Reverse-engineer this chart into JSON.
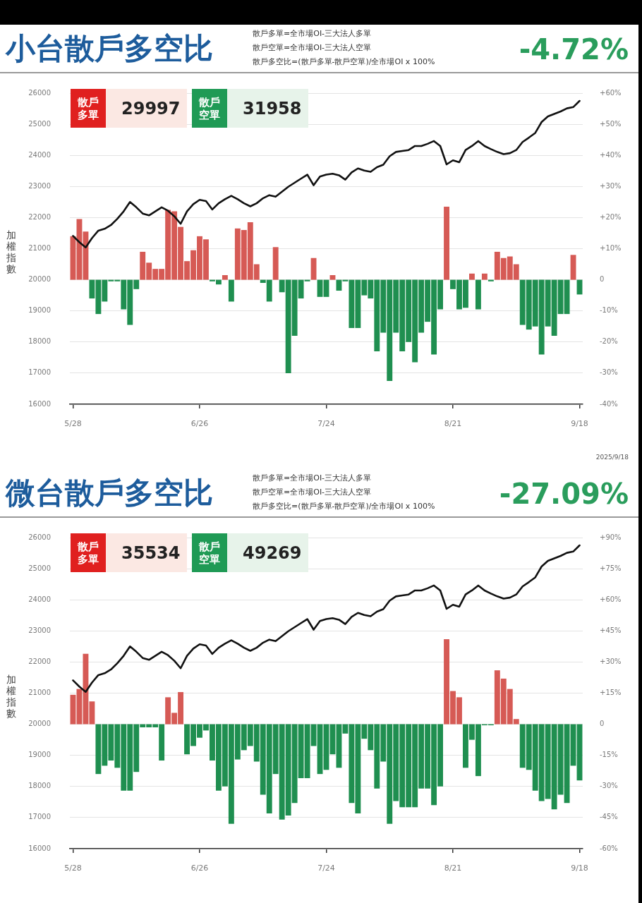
{
  "chart_data": [
    {
      "type": "bar",
      "title": "小台散戶多空比",
      "ylabel": "加權指數",
      "annotations": [
        "散戶多單=全市場OI-三大法人多單",
        "散戶空單=全市場OI-三大法人空單",
        "散戶多空比=(散戶多單-散戶空單)/全市場OI x 100%",
        "-4.72%",
        "散戶多單",
        "29997",
        "散戶空單",
        "31958",
        "2025/9/18"
      ],
      "categories": [
        "5/28",
        null,
        null,
        null,
        null,
        null,
        null,
        null,
        null,
        null,
        null,
        null,
        null,
        null,
        null,
        null,
        null,
        null,
        null,
        null,
        "6/26",
        null,
        null,
        null,
        null,
        null,
        null,
        null,
        null,
        null,
        null,
        null,
        null,
        null,
        null,
        null,
        null,
        null,
        null,
        null,
        "7/24",
        null,
        null,
        null,
        null,
        null,
        null,
        null,
        null,
        null,
        null,
        null,
        null,
        null,
        null,
        null,
        null,
        null,
        null,
        null,
        "8/21",
        null,
        null,
        null,
        null,
        null,
        null,
        null,
        null,
        null,
        null,
        null,
        null,
        null,
        null,
        null,
        null,
        null,
        null,
        null,
        "9/18"
      ],
      "series": [
        {
          "axis": "y2",
          "values": [
            14,
            19.5,
            15.5,
            -6,
            -11,
            -7,
            -0.5,
            -0.5,
            -9.5,
            -14.5,
            -3,
            9,
            5.5,
            3.5,
            3.5,
            22.5,
            22,
            17,
            6,
            9.5,
            14,
            13,
            -0.5,
            -1.5,
            1.5,
            -7,
            16.5,
            16,
            18.5,
            5,
            -1,
            -7,
            10.5,
            -4,
            -30,
            -18,
            -6,
            -0.5,
            7,
            -5.5,
            -5.5,
            1.5,
            -3.5,
            -0.5,
            -15.5,
            -15.5,
            -5,
            -6,
            -23,
            -17,
            -32.5,
            -17,
            -23,
            -20,
            -26.5,
            -17,
            -13.5,
            -24,
            -9.5,
            23.5,
            -3,
            -9.5,
            -9,
            2,
            -9.5,
            2,
            -0.5,
            9,
            7,
            7.5,
            5,
            -14.5,
            -16,
            -15,
            -24,
            -15,
            -18,
            -11,
            -11,
            8,
            -4.72
          ],
          "colors": [
            "#d65a55",
            "#d65a55",
            "#d65a55",
            "#1f8f50",
            "#1f8f50",
            "#1f8f50",
            "#1f8f50",
            "#1f8f50",
            "#1f8f50",
            "#1f8f50",
            "#1f8f50",
            "#d65a55",
            "#d65a55",
            "#d65a55",
            "#d65a55",
            "#d65a55",
            "#d65a55",
            "#d65a55",
            "#d65a55",
            "#d65a55",
            "#d65a55",
            "#d65a55",
            "#1f8f50",
            "#1f8f50",
            "#d65a55",
            "#1f8f50",
            "#d65a55",
            "#d65a55",
            "#d65a55",
            "#d65a55",
            "#1f8f50",
            "#1f8f50",
            "#d65a55",
            "#1f8f50",
            "#1f8f50",
            "#1f8f50",
            "#1f8f50",
            "#1f8f50",
            "#d65a55",
            "#1f8f50",
            "#1f8f50",
            "#d65a55",
            "#1f8f50",
            "#1f8f50",
            "#1f8f50",
            "#1f8f50",
            "#1f8f50",
            "#1f8f50",
            "#1f8f50",
            "#1f8f50",
            "#1f8f50",
            "#1f8f50",
            "#1f8f50",
            "#1f8f50",
            "#1f8f50",
            "#1f8f50",
            "#1f8f50",
            "#1f8f50",
            "#1f8f50",
            "#d65a55",
            "#1f8f50",
            "#1f8f50",
            "#1f8f50",
            "#d65a55",
            "#1f8f50",
            "#d65a55",
            "#1f8f50",
            "#d65a55",
            "#d65a55",
            "#d65a55",
            "#d65a55",
            "#1f8f50",
            "#1f8f50",
            "#1f8f50",
            "#1f8f50",
            "#1f8f50",
            "#1f8f50",
            "#1f8f50",
            "#1f8f50",
            "#d65a55",
            "#1f8f50"
          ]
        },
        {
          "type": "line",
          "color": "#111111",
          "values": [
            21410,
            21210,
            21040,
            21340,
            21580,
            21640,
            21760,
            21960,
            22200,
            22500,
            22330,
            22130,
            22070,
            22200,
            22330,
            22220,
            22040,
            21800,
            22200,
            22430,
            22570,
            22530,
            22260,
            22460,
            22590,
            22700,
            22590,
            22460,
            22360,
            22460,
            22620,
            22720,
            22670,
            22830,
            22990,
            23120,
            23250,
            23380,
            23040,
            23320,
            23380,
            23410,
            23360,
            23220,
            23450,
            23580,
            23510,
            23470,
            23620,
            23700,
            23970,
            24110,
            24140,
            24170,
            24300,
            24300,
            24370,
            24460,
            24300,
            23710,
            23840,
            23780,
            24170,
            24300,
            24460,
            24300,
            24200,
            24110,
            24040,
            24070,
            24170,
            24430,
            24570,
            24720,
            25070,
            25250,
            25330,
            25410,
            25510,
            25550,
            25750
          ]
        }
      ],
      "ylim": [
        16000,
        26000
      ],
      "yticks": [
        16000,
        17000,
        18000,
        19000,
        20000,
        21000,
        22000,
        23000,
        24000,
        25000,
        26000
      ],
      "y2lim": [
        -40,
        60
      ],
      "y2ticks": [
        {
          "value": -40,
          "label": "-40%"
        },
        {
          "value": -30,
          "label": "-30%"
        },
        {
          "value": -20,
          "label": "-20%"
        },
        {
          "value": -10,
          "label": "-10%"
        },
        0,
        {
          "value": 10,
          "label": "+10%"
        },
        {
          "value": 20,
          "label": "+20%"
        },
        {
          "value": 30,
          "label": "+30%"
        },
        {
          "value": 40,
          "label": "+40%"
        },
        {
          "value": 50,
          "label": "+50%"
        },
        {
          "value": 60,
          "label": "+60%"
        }
      ],
      "grid": "y"
    },
    {
      "type": "bar",
      "title": "微台散戶多空比",
      "ylabel": "加權指數",
      "annotations": [
        "散戶多單=全市場OI-三大法人多單",
        "散戶空單=全市場OI-三大法人空單",
        "散戶多空比=(散戶多單-散戶空單)/全市場OI x 100%",
        "-27.09%",
        "散戶多單",
        "35534",
        "散戶空單",
        "49269"
      ],
      "categories": [
        "5/28",
        null,
        null,
        null,
        null,
        null,
        null,
        null,
        null,
        null,
        null,
        null,
        null,
        null,
        null,
        null,
        null,
        null,
        null,
        null,
        "6/26",
        null,
        null,
        null,
        null,
        null,
        null,
        null,
        null,
        null,
        null,
        null,
        null,
        null,
        null,
        null,
        null,
        null,
        null,
        null,
        "7/24",
        null,
        null,
        null,
        null,
        null,
        null,
        null,
        null,
        null,
        null,
        null,
        null,
        null,
        null,
        null,
        null,
        null,
        null,
        null,
        "8/21",
        null,
        null,
        null,
        null,
        null,
        null,
        null,
        null,
        null,
        null,
        null,
        null,
        null,
        null,
        null,
        null,
        null,
        null,
        null,
        "9/18"
      ],
      "series": [
        {
          "axis": "y2",
          "values": [
            14.2,
            17,
            34,
            11,
            -24,
            -20,
            -17.5,
            -21,
            -32,
            -32,
            -23,
            -1.5,
            -1.5,
            -1.5,
            -17.5,
            13,
            5.5,
            15.5,
            -14.5,
            -10.5,
            -6.5,
            -3,
            -17.5,
            -32,
            -30,
            -48,
            -17,
            -12.5,
            -10.5,
            -18,
            -34,
            -43,
            -24,
            -46,
            -44,
            -38,
            -26,
            -26,
            -10.5,
            -24,
            -22,
            -14.5,
            -21,
            -4.5,
            -38,
            -43,
            -7,
            -12.5,
            -31,
            -18,
            -48,
            -37,
            -40,
            -40,
            -40,
            -31,
            -31,
            -39,
            -30,
            41,
            16,
            13,
            -21,
            -7.5,
            -25,
            -0.5,
            -0.5,
            26,
            22,
            17,
            2.5,
            -21,
            -22,
            -32,
            -37,
            -36,
            -41,
            -34,
            -38,
            -20,
            -27.09
          ],
          "colors": [
            "#d65a55",
            "#d65a55",
            "#d65a55",
            "#d65a55",
            "#1f8f50",
            "#1f8f50",
            "#1f8f50",
            "#1f8f50",
            "#1f8f50",
            "#1f8f50",
            "#1f8f50",
            "#1f8f50",
            "#1f8f50",
            "#1f8f50",
            "#1f8f50",
            "#d65a55",
            "#d65a55",
            "#d65a55",
            "#1f8f50",
            "#1f8f50",
            "#1f8f50",
            "#1f8f50",
            "#1f8f50",
            "#1f8f50",
            "#1f8f50",
            "#1f8f50",
            "#1f8f50",
            "#1f8f50",
            "#1f8f50",
            "#1f8f50",
            "#1f8f50",
            "#1f8f50",
            "#1f8f50",
            "#1f8f50",
            "#1f8f50",
            "#1f8f50",
            "#1f8f50",
            "#1f8f50",
            "#1f8f50",
            "#1f8f50",
            "#1f8f50",
            "#1f8f50",
            "#1f8f50",
            "#1f8f50",
            "#1f8f50",
            "#1f8f50",
            "#1f8f50",
            "#1f8f50",
            "#1f8f50",
            "#1f8f50",
            "#1f8f50",
            "#1f8f50",
            "#1f8f50",
            "#1f8f50",
            "#1f8f50",
            "#1f8f50",
            "#1f8f50",
            "#1f8f50",
            "#1f8f50",
            "#d65a55",
            "#d65a55",
            "#d65a55",
            "#1f8f50",
            "#1f8f50",
            "#1f8f50",
            "#1f8f50",
            "#1f8f50",
            "#d65a55",
            "#d65a55",
            "#d65a55",
            "#d65a55",
            "#1f8f50",
            "#1f8f50",
            "#1f8f50",
            "#1f8f50",
            "#1f8f50",
            "#1f8f50",
            "#1f8f50",
            "#1f8f50",
            "#1f8f50",
            "#1f8f50"
          ]
        },
        {
          "type": "line",
          "color": "#111111",
          "values": [
            21410,
            21210,
            21040,
            21340,
            21580,
            21640,
            21760,
            21960,
            22200,
            22500,
            22330,
            22130,
            22070,
            22200,
            22330,
            22220,
            22040,
            21800,
            22200,
            22430,
            22570,
            22530,
            22260,
            22460,
            22590,
            22700,
            22590,
            22460,
            22360,
            22460,
            22620,
            22720,
            22670,
            22830,
            22990,
            23120,
            23250,
            23380,
            23040,
            23320,
            23380,
            23410,
            23360,
            23220,
            23450,
            23580,
            23510,
            23470,
            23620,
            23700,
            23970,
            24110,
            24140,
            24170,
            24300,
            24300,
            24370,
            24460,
            24300,
            23710,
            23840,
            23780,
            24170,
            24300,
            24460,
            24300,
            24200,
            24110,
            24040,
            24070,
            24170,
            24430,
            24570,
            24720,
            25070,
            25250,
            25330,
            25410,
            25510,
            25550,
            25750
          ]
        }
      ],
      "ylim": [
        16000,
        26000
      ],
      "yticks": [
        16000,
        17000,
        18000,
        19000,
        20000,
        21000,
        22000,
        23000,
        24000,
        25000,
        26000
      ],
      "y2lim": [
        -60,
        90
      ],
      "y2ticks": [
        {
          "value": -60,
          "label": "-60%"
        },
        {
          "value": -45,
          "label": "-45%"
        },
        {
          "value": -30,
          "label": "-30%"
        },
        {
          "value": -15,
          "label": "-15%"
        },
        0,
        {
          "value": 15,
          "label": "+15%"
        },
        {
          "value": 30,
          "label": "+30%"
        },
        {
          "value": 45,
          "label": "+45%"
        },
        {
          "value": 60,
          "label": "+60%"
        },
        {
          "value": 75,
          "label": "+75%"
        },
        {
          "value": 90,
          "label": "+90%"
        }
      ],
      "grid": "y"
    }
  ]
}
